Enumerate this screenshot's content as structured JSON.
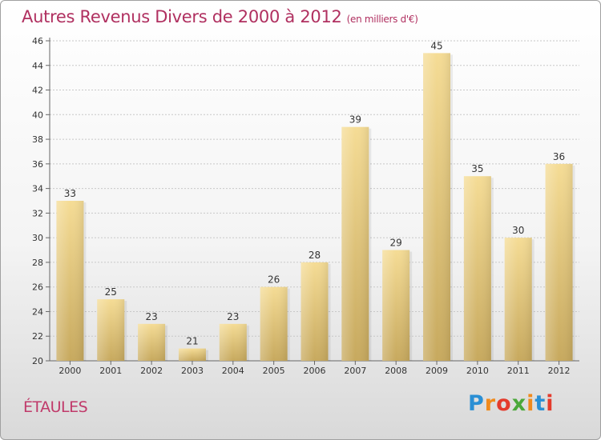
{
  "chart_data": {
    "type": "bar",
    "title": "Autres Revenus Divers de 2000 à 2012",
    "subtitle": "(en milliers d'€)",
    "categories": [
      "2000",
      "2001",
      "2002",
      "2003",
      "2004",
      "2005",
      "2006",
      "2007",
      "2008",
      "2009",
      "2010",
      "2011",
      "2012"
    ],
    "values": [
      33,
      25,
      23,
      21,
      23,
      26,
      28,
      39,
      29,
      45,
      35,
      30,
      36
    ],
    "ylim": [
      20,
      46
    ],
    "yticks": [
      20,
      22,
      24,
      26,
      28,
      30,
      32,
      34,
      36,
      38,
      40,
      42,
      44,
      46
    ],
    "grid": true,
    "bar_color_top": "#f5dc95",
    "bar_color_bottom": "#c7a95e"
  },
  "commune": "ÉTAULES",
  "logo": {
    "letters": [
      "P",
      "r",
      "o",
      "x",
      "i",
      "t",
      "i"
    ],
    "colors": [
      "#2a8fd4",
      "#f08a1c",
      "#e43b2c",
      "#4aa83a",
      "#f08a1c",
      "#2a8fd4",
      "#e43b2c"
    ]
  }
}
